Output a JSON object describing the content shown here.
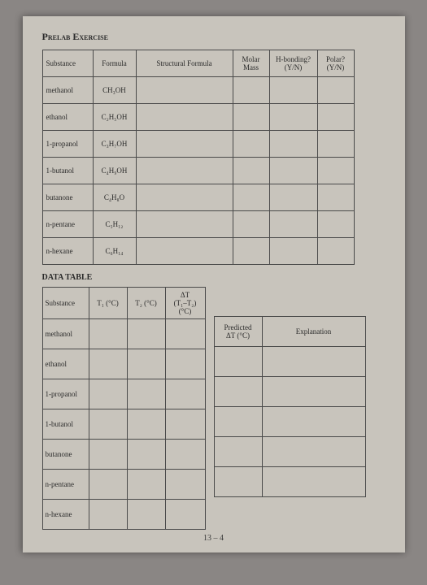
{
  "heading": "Prelab Exercise",
  "table1": {
    "headers": [
      "Substance",
      "Formula",
      "Structural Formula",
      "Molar Mass",
      "H-bonding? (Y/N)",
      "Polar? (Y/N)"
    ],
    "rows": [
      {
        "substance": "methanol",
        "formula": "CH₃OH"
      },
      {
        "substance": "ethanol",
        "formula": "C₂H₅OH"
      },
      {
        "substance": "1-propanol",
        "formula": "C₃H₇OH"
      },
      {
        "substance": "1-butanol",
        "formula": "C₄H₉OH"
      },
      {
        "substance": "butanone",
        "formula": "C₄H₈O"
      },
      {
        "substance": "n-pentane",
        "formula": "C₅H₁₂"
      },
      {
        "substance": "n-hexane",
        "formula": "C₆H₁₄"
      }
    ]
  },
  "subtitle": "DATA TABLE",
  "table2": {
    "headers": [
      "Substance",
      "T₁ (°C)",
      "T₂ (°C)",
      "ΔT (T₁–T₂) (°C)"
    ],
    "rows": [
      "methanol",
      "ethanol",
      "1-propanol",
      "1-butanol",
      "butanone",
      "n-pentane",
      "n-hexane"
    ]
  },
  "table3": {
    "headers": [
      "Predicted ΔT (°C)",
      "Explanation"
    ],
    "rowcount": 5
  },
  "pagenum": "13 – 4"
}
